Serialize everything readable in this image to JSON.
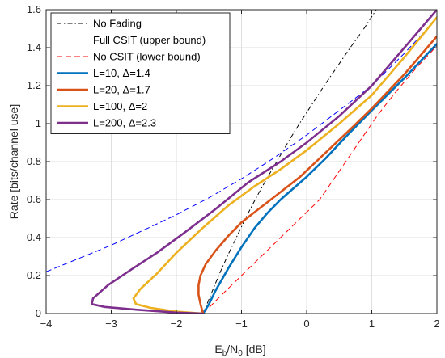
{
  "chart_data": {
    "type": "line",
    "xlabel_main": "E",
    "xlabel_sub1": "b",
    "xlabel_mid": "/N",
    "xlabel_sub2": "0",
    "xlabel_unit": " [dB]",
    "ylabel": "Rate [bits/channel use]",
    "xlim": [
      -4,
      2
    ],
    "ylim": [
      0,
      1.6
    ],
    "x_ticks": [
      -4,
      -3,
      -2,
      -1,
      0,
      1,
      2
    ],
    "x_tick_labels": [
      "−4",
      "−3",
      "−2",
      "−1",
      "0",
      "1",
      "2"
    ],
    "y_ticks": [
      0,
      0.2,
      0.4,
      0.6,
      0.8,
      1,
      1.2,
      1.4,
      1.6
    ],
    "y_tick_labels": [
      "0",
      "0.2",
      "0.4",
      "0.6",
      "0.8",
      "1",
      "1.2",
      "1.4",
      "1.6"
    ],
    "grid": true,
    "legend_position": "top-left",
    "series": [
      {
        "name": "No Fading",
        "color": "#000000",
        "dash": "6,3,1.5,3",
        "width": 1,
        "points": [
          [
            -1.59,
            0
          ],
          [
            -1.47,
            0.1
          ],
          [
            -1.35,
            0.2
          ],
          [
            -1.22,
            0.3
          ],
          [
            -1.08,
            0.4
          ],
          [
            -0.94,
            0.5
          ],
          [
            -0.79,
            0.6
          ],
          [
            -0.63,
            0.7
          ],
          [
            -0.46,
            0.8
          ],
          [
            -0.29,
            0.9
          ],
          [
            -0.11,
            1.0
          ],
          [
            0.08,
            1.1
          ],
          [
            0.27,
            1.2
          ],
          [
            0.47,
            1.3
          ],
          [
            0.67,
            1.4
          ],
          [
            0.88,
            1.5
          ],
          [
            1.07,
            1.6
          ]
        ]
      },
      {
        "name": "Full CSIT (upper bound)",
        "color": "#0000ff",
        "dash": "7,4",
        "width": 1,
        "points": [
          [
            -4,
            0.22
          ],
          [
            -3.5,
            0.29
          ],
          [
            -3,
            0.36
          ],
          [
            -2.5,
            0.44
          ],
          [
            -2,
            0.52
          ],
          [
            -1.5,
            0.61
          ],
          [
            -1,
            0.71
          ],
          [
            -0.5,
            0.82
          ],
          [
            0,
            0.94
          ],
          [
            0.5,
            1.07
          ],
          [
            1,
            1.2
          ],
          [
            1.5,
            1.37
          ],
          [
            1.8,
            1.48
          ],
          [
            2,
            1.56
          ]
        ]
      },
      {
        "name": "No CSIT (lower bound)",
        "color": "#ff0000",
        "dash": "7,4",
        "width": 1,
        "points": [
          [
            -1.59,
            0
          ],
          [
            -1.3,
            0.1
          ],
          [
            -1.0,
            0.2
          ],
          [
            -0.7,
            0.3
          ],
          [
            -0.4,
            0.4
          ],
          [
            -0.1,
            0.5
          ],
          [
            0.2,
            0.6
          ],
          [
            0.5,
            0.75
          ],
          [
            0.8,
            0.9
          ],
          [
            1.1,
            1.05
          ],
          [
            1.4,
            1.18
          ],
          [
            1.7,
            1.3
          ],
          [
            2,
            1.41
          ]
        ]
      },
      {
        "name": "L=10, Δ=1.4",
        "color": "#0072bd",
        "dash": "",
        "width": 2.6,
        "points": [
          [
            -1.59,
            0
          ],
          [
            -1.5,
            0.05
          ],
          [
            -1.4,
            0.12
          ],
          [
            -1.2,
            0.24
          ],
          [
            -1.0,
            0.35
          ],
          [
            -0.8,
            0.45
          ],
          [
            -0.6,
            0.53
          ],
          [
            -0.4,
            0.6
          ],
          [
            -0.2,
            0.66
          ],
          [
            0,
            0.72
          ],
          [
            0.3,
            0.82
          ],
          [
            0.6,
            0.93
          ],
          [
            1.0,
            1.07
          ],
          [
            1.5,
            1.24
          ],
          [
            2,
            1.42
          ]
        ]
      },
      {
        "name": "L=20, Δ=1.7",
        "color": "#d95319",
        "dash": "",
        "width": 2.6,
        "points": [
          [
            -1.59,
            0
          ],
          [
            -1.63,
            0.05
          ],
          [
            -1.66,
            0.1
          ],
          [
            -1.66,
            0.15
          ],
          [
            -1.63,
            0.2
          ],
          [
            -1.55,
            0.26
          ],
          [
            -1.4,
            0.33
          ],
          [
            -1.2,
            0.41
          ],
          [
            -1.0,
            0.48
          ],
          [
            -0.7,
            0.56
          ],
          [
            -0.4,
            0.64
          ],
          [
            -0.1,
            0.72
          ],
          [
            0.3,
            0.85
          ],
          [
            0.7,
            0.98
          ],
          [
            1.0,
            1.08
          ],
          [
            1.5,
            1.26
          ],
          [
            2,
            1.46
          ]
        ]
      },
      {
        "name": "L=100, Δ=2",
        "color": "#edb120",
        "dash": "",
        "width": 2.6,
        "points": [
          [
            -1.59,
            0
          ],
          [
            -2.0,
            0.01
          ],
          [
            -2.4,
            0.03
          ],
          [
            -2.62,
            0.05
          ],
          [
            -2.66,
            0.08
          ],
          [
            -2.55,
            0.13
          ],
          [
            -2.3,
            0.21
          ],
          [
            -2.0,
            0.32
          ],
          [
            -1.6,
            0.45
          ],
          [
            -1.2,
            0.57
          ],
          [
            -0.8,
            0.67
          ],
          [
            -0.4,
            0.76
          ],
          [
            0,
            0.86
          ],
          [
            0.5,
            1.0
          ],
          [
            1.0,
            1.15
          ],
          [
            1.5,
            1.35
          ],
          [
            2,
            1.56
          ]
        ]
      },
      {
        "name": "L=200, Δ=2.3",
        "color": "#7e2f8e",
        "dash": "",
        "width": 2.6,
        "points": [
          [
            -1.59,
            0
          ],
          [
            -2.0,
            0.005
          ],
          [
            -2.6,
            0.02
          ],
          [
            -3.1,
            0.035
          ],
          [
            -3.3,
            0.05
          ],
          [
            -3.28,
            0.08
          ],
          [
            -3.05,
            0.15
          ],
          [
            -2.7,
            0.23
          ],
          [
            -2.3,
            0.32
          ],
          [
            -1.9,
            0.42
          ],
          [
            -1.4,
            0.55
          ],
          [
            -0.9,
            0.69
          ],
          [
            -0.4,
            0.8
          ],
          [
            0,
            0.9
          ],
          [
            0.5,
            1.04
          ],
          [
            1.0,
            1.2
          ],
          [
            1.5,
            1.4
          ],
          [
            2,
            1.6
          ]
        ]
      }
    ]
  }
}
